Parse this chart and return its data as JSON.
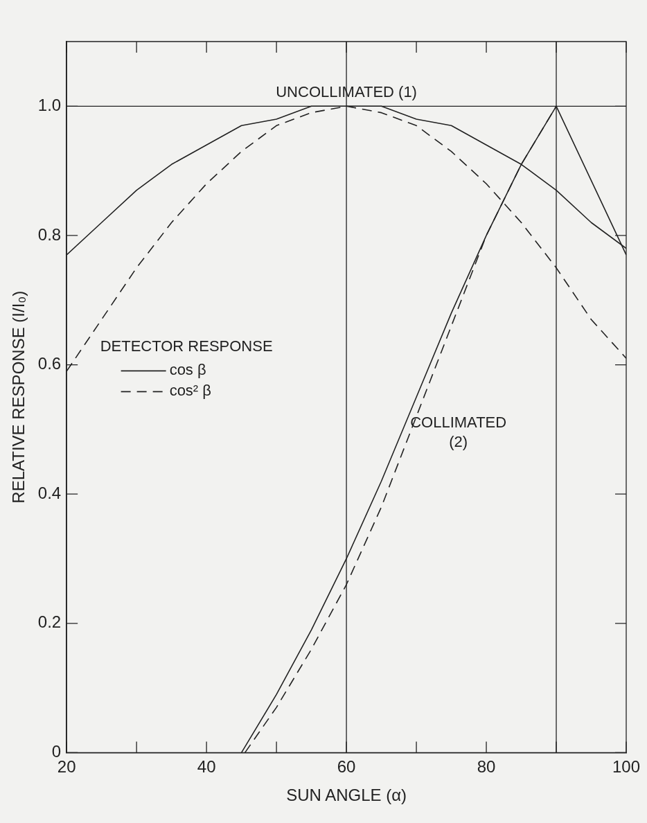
{
  "chart_data": {
    "type": "line",
    "xlabel": "SUN ANGLE (α)",
    "ylabel": "RELATIVE RESPONSE (I/I₀)",
    "legend_title": "DETECTOR RESPONSE",
    "legend": "left",
    "grid": false,
    "marker": "none",
    "xlim": [
      20,
      100
    ],
    "ylim": [
      0,
      1.1
    ],
    "xticks": [
      20,
      {
        "value": 30,
        "label": null
      },
      40,
      {
        "value": 50,
        "label": null
      },
      60,
      {
        "value": 70,
        "label": null
      },
      80,
      {
        "value": 90,
        "label": null
      },
      100
    ],
    "yticks": [
      0,
      0.2,
      0.4,
      0.6,
      0.8,
      {
        "value": 1,
        "label": "1.0"
      }
    ],
    "series": [
      {
        "name": "cos β",
        "color": "#222222",
        "line_style": "solid",
        "x": [
          20,
          25,
          30,
          35,
          40,
          45,
          50,
          55,
          60,
          65,
          70,
          75,
          80,
          85,
          90,
          95,
          100
        ],
        "values": [
          0.77,
          0.82,
          0.87,
          0.91,
          0.94,
          0.97,
          0.98,
          1.0,
          1.0,
          1.0,
          0.98,
          0.97,
          0.94,
          0.91,
          0.87,
          0.82,
          0.78
        ]
      },
      {
        "name": "cos² β",
        "color": "#222222",
        "line_style": "dashed",
        "x": [
          20,
          25,
          30,
          35,
          40,
          45,
          50,
          55,
          60,
          65,
          70,
          75,
          80,
          85,
          90,
          95,
          100
        ],
        "values": [
          0.59,
          0.67,
          0.75,
          0.82,
          0.88,
          0.93,
          0.97,
          0.99,
          1.0,
          0.99,
          0.97,
          0.93,
          0.88,
          0.82,
          0.75,
          0.67,
          0.61
        ]
      },
      {
        "color": "#222222",
        "line_style": "solid",
        "x": [
          45,
          50,
          55,
          60,
          65,
          70,
          75,
          80,
          85,
          90,
          100
        ],
        "values": [
          0,
          0.09,
          0.19,
          0.3,
          0.42,
          0.55,
          0.68,
          0.8,
          0.91,
          1.0,
          0.77
        ]
      },
      {
        "color": "#222222",
        "line_style": "dashed",
        "x": [
          45.5,
          50,
          55,
          60,
          65,
          70,
          75,
          80,
          85,
          90
        ],
        "values": [
          0,
          0.07,
          0.16,
          0.26,
          0.38,
          0.52,
          0.66,
          0.8,
          0.91,
          1.0
        ]
      }
    ],
    "ref_lines": [
      {
        "axis": "y",
        "value": 1,
        "label": "UNCOLLIMATED (1)"
      },
      {
        "axis": "x",
        "value": 60
      },
      {
        "axis": "x",
        "value": 90
      }
    ],
    "annotations": [
      "COLLIMATED\n(2)"
    ]
  }
}
